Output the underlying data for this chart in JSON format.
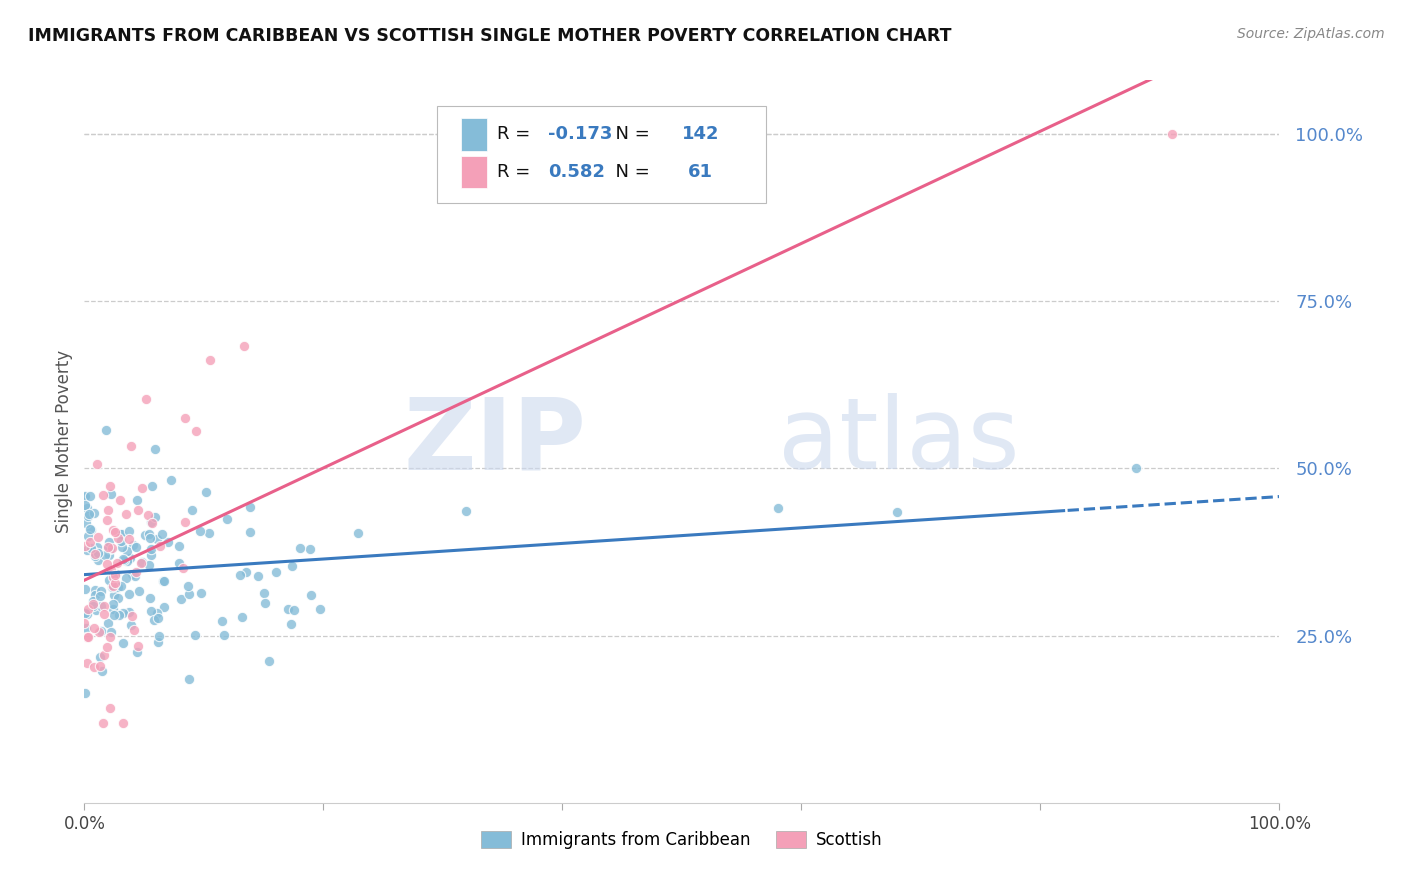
{
  "title": "IMMIGRANTS FROM CARIBBEAN VS SCOTTISH SINGLE MOTHER POVERTY CORRELATION CHART",
  "source": "Source: ZipAtlas.com",
  "ylabel": "Single Mother Poverty",
  "legend_label1": "Immigrants from Caribbean",
  "legend_label2": "Scottish",
  "r1": -0.173,
  "n1": 142,
  "r2": 0.582,
  "n2": 61,
  "color_blue": "#85bcd8",
  "color_pink": "#f4a0b8",
  "color_blue_line": "#3a7abf",
  "color_pink_line": "#e8608a",
  "color_r_value": "#3a7abf",
  "color_yticks": "#5588cc",
  "ytick_labels": [
    "100.0%",
    "75.0%",
    "50.0%",
    "25.0%"
  ],
  "ytick_values": [
    1.0,
    0.75,
    0.5,
    0.25
  ],
  "watermark_zip": "ZIP",
  "watermark_atlas": "atlas",
  "seed_blue": 12,
  "seed_pink": 7
}
